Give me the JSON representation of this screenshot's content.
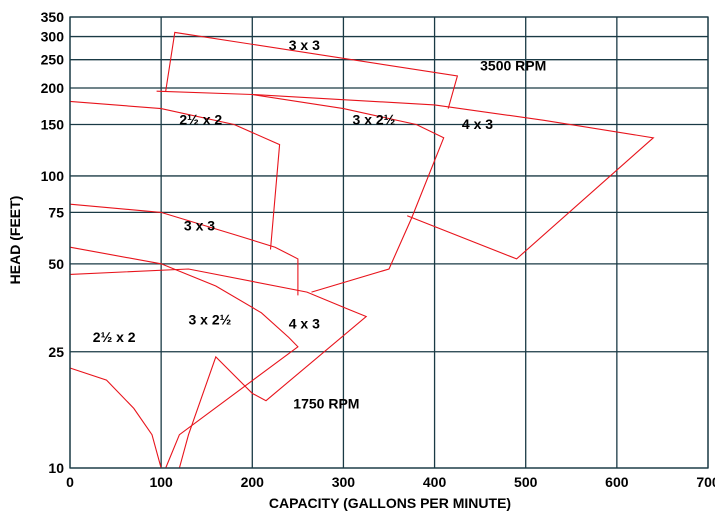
{
  "chart_data": {
    "type": "line",
    "title": "",
    "xlabel": "CAPACITY (GALLONS PER MINUTE)",
    "ylabel": "HEAD (FEET)",
    "xlim": [
      0,
      700
    ],
    "ylim": [
      10,
      350
    ],
    "y_scale": "log",
    "grid": true,
    "line_color": "#e8141c",
    "grid_color": "#1a3a45",
    "x_ticks": [
      0,
      100,
      200,
      300,
      400,
      500,
      600,
      700
    ],
    "y_ticks": [
      10,
      25,
      50,
      75,
      100,
      150,
      200,
      250,
      300,
      350
    ],
    "series": [
      {
        "name": "3 x 3",
        "speed": "3500 RPM",
        "points": [
          [
            105,
            195
          ],
          [
            115,
            310
          ],
          [
            425,
            220
          ],
          [
            415,
            170
          ]
        ]
      },
      {
        "name": "2½ x 2",
        "speed": "3500 RPM",
        "points": [
          [
            0,
            180
          ],
          [
            100,
            170
          ],
          [
            180,
            150
          ],
          [
            230,
            128
          ],
          [
            220,
            56
          ]
        ]
      },
      {
        "name": "3 x 2½",
        "speed": "3500 RPM",
        "points": [
          [
            95,
            195
          ],
          [
            200,
            190
          ],
          [
            300,
            170
          ],
          [
            380,
            150
          ],
          [
            410,
            135
          ],
          [
            375,
            72
          ],
          [
            350,
            48
          ],
          [
            265,
            40
          ]
        ]
      },
      {
        "name": "4 x 3",
        "speed": "3500 RPM",
        "points": [
          [
            200,
            190
          ],
          [
            400,
            175
          ],
          [
            520,
            155
          ],
          [
            640,
            135
          ],
          [
            490,
            52
          ],
          [
            370,
            73
          ]
        ]
      },
      {
        "name": "3 x 3",
        "speed": "1750 RPM",
        "points": [
          [
            0,
            80
          ],
          [
            100,
            75
          ],
          [
            180,
            63
          ],
          [
            225,
            57
          ],
          [
            250,
            52
          ],
          [
            250,
            39
          ]
        ]
      },
      {
        "name": "2½ x 2",
        "speed": "1750 RPM",
        "points": [
          [
            0,
            22
          ],
          [
            40,
            20
          ],
          [
            70,
            16
          ],
          [
            90,
            13
          ],
          [
            100,
            10
          ]
        ]
      },
      {
        "name": "3 x 2½",
        "speed": "1750 RPM",
        "points": [
          [
            0,
            57
          ],
          [
            100,
            50
          ],
          [
            160,
            42
          ],
          [
            210,
            34
          ],
          [
            240,
            28
          ],
          [
            250,
            26
          ],
          [
            120,
            13
          ],
          [
            105,
            10
          ]
        ]
      },
      {
        "name": "4 x 3",
        "speed": "1750 RPM",
        "points": [
          [
            0,
            46
          ],
          [
            130,
            48
          ],
          [
            260,
            40
          ],
          [
            305,
            35
          ],
          [
            325,
            33
          ],
          [
            215,
            17
          ],
          [
            200,
            18
          ],
          [
            160,
            24
          ],
          [
            130,
            13
          ],
          [
            120,
            10
          ]
        ]
      }
    ],
    "annotations": [
      {
        "text": "3 x 3",
        "x": 240,
        "y": 270
      },
      {
        "text": "3500 RPM",
        "x": 450,
        "y": 230
      },
      {
        "text": "2½ x 2",
        "x": 120,
        "y": 150
      },
      {
        "text": "3 x 2½",
        "x": 310,
        "y": 150
      },
      {
        "text": "4 x 3",
        "x": 430,
        "y": 145
      },
      {
        "text": "3 x 3",
        "x": 125,
        "y": 65
      },
      {
        "text": "3 x 2½",
        "x": 130,
        "y": 31
      },
      {
        "text": "4 x 3",
        "x": 240,
        "y": 30
      },
      {
        "text": "2½ x 2",
        "x": 25,
        "y": 27
      },
      {
        "text": "1750 RPM",
        "x": 245,
        "y": 16
      }
    ]
  }
}
